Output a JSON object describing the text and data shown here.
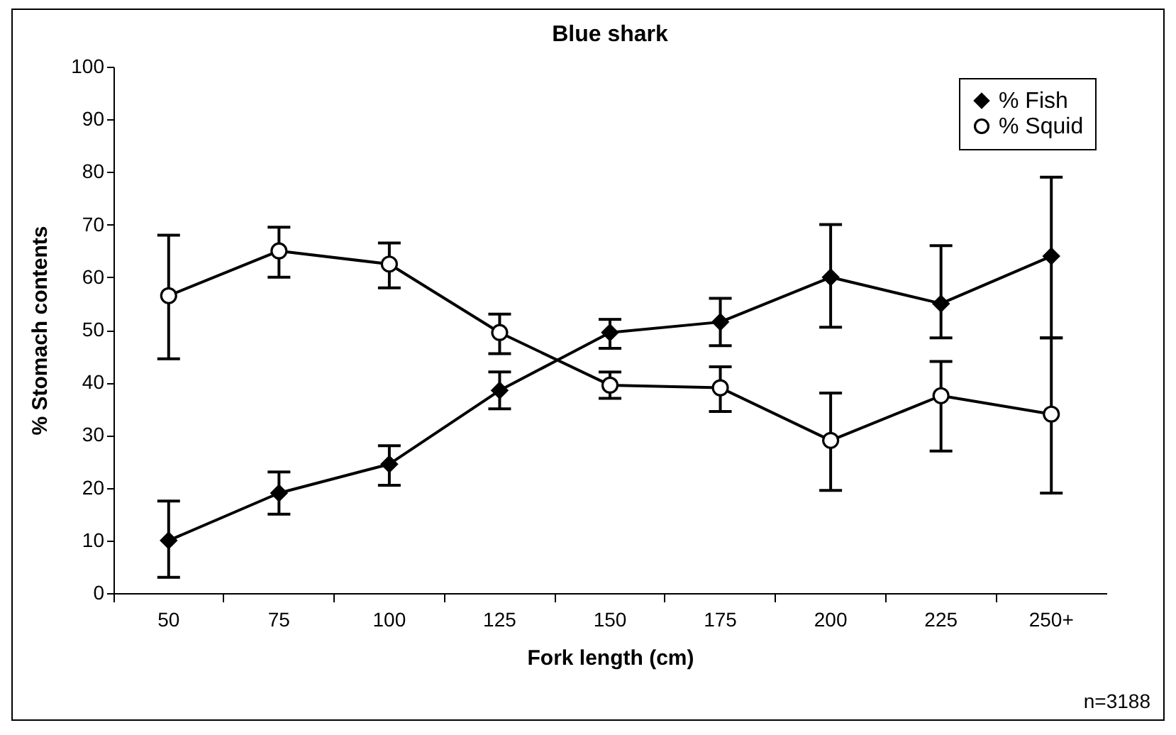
{
  "chart_data": {
    "type": "line",
    "title": "Blue shark",
    "xlabel": "Fork length (cm)",
    "ylabel": "% Stomach contents",
    "categories": [
      "50",
      "75",
      "100",
      "125",
      "150",
      "175",
      "200",
      "225",
      "250+"
    ],
    "series": [
      {
        "name": "% Fish",
        "color": "#000000",
        "marker": "diamond",
        "values": [
          10,
          19,
          24.5,
          38.5,
          49.5,
          51.5,
          60,
          55,
          64
        ],
        "errors": [
          [
            3,
            17.5
          ],
          [
            15,
            23
          ],
          [
            20.5,
            28
          ],
          [
            35,
            42
          ],
          [
            46.5,
            52
          ],
          [
            47,
            56
          ],
          [
            50.5,
            70
          ],
          [
            48.5,
            66
          ],
          [
            48.5,
            79
          ]
        ]
      },
      {
        "name": "% Squid",
        "color": "#000000",
        "marker": "circle",
        "values": [
          56.5,
          65,
          62.5,
          49.5,
          39.5,
          39,
          29,
          37.5,
          34
        ],
        "errors": [
          [
            44.5,
            68
          ],
          [
            60,
            69.5
          ],
          [
            58,
            66.5
          ],
          [
            45.5,
            53
          ],
          [
            37,
            42
          ],
          [
            34.5,
            43
          ],
          [
            19.5,
            38
          ],
          [
            27,
            44
          ],
          [
            19,
            48.5
          ]
        ]
      }
    ],
    "ylim": [
      0,
      100
    ],
    "yticks": [
      0,
      10,
      20,
      30,
      40,
      50,
      60,
      70,
      80,
      90,
      100
    ],
    "grid": false,
    "legend": "top right",
    "line_style": "solid",
    "annotations": [
      "n=3188"
    ]
  }
}
